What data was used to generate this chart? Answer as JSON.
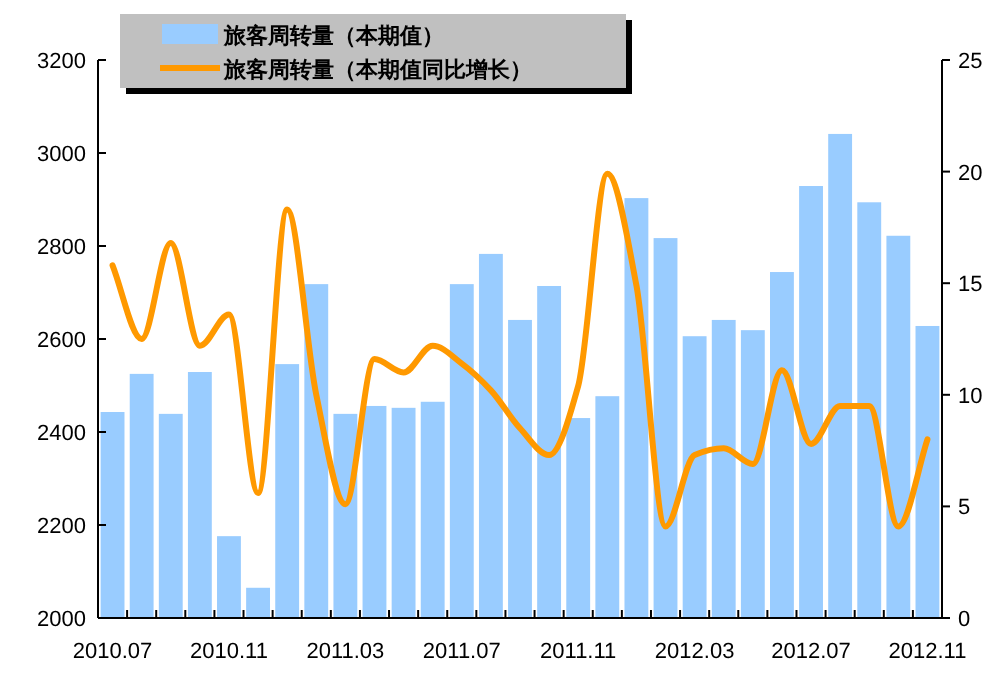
{
  "chart_data": {
    "type": "bar",
    "legend": "top",
    "categories": [
      "2010.07",
      null,
      null,
      null,
      "2010.11",
      null,
      null,
      null,
      "2011.03",
      null,
      null,
      null,
      "2011.07",
      null,
      null,
      null,
      "2011.11",
      null,
      null,
      null,
      "2012.03",
      null,
      null,
      null,
      "2012.07",
      null,
      null,
      null,
      "2012.11"
    ],
    "series": [
      {
        "name": "旅客周转量（本期值）",
        "type": "bar",
        "color": "#99ccff",
        "values": [
          2443,
          2525,
          2439,
          2529,
          2176,
          2065,
          2546,
          2718,
          2439,
          2456,
          2452,
          2465,
          2718,
          2783,
          2641,
          2714,
          2430,
          2477,
          2903,
          2817,
          2606,
          2641,
          2619,
          2744,
          2929,
          3041,
          2894,
          2822,
          2628
        ]
      },
      {
        "name": "旅客周转量（本期值同比增长）",
        "type": "line",
        "axis": "y2",
        "color": "#ff9900",
        "values": [
          15.8,
          12.5,
          16.8,
          12.2,
          13.6,
          5.6,
          18.3,
          10.0,
          5.1,
          11.6,
          11.0,
          12.2,
          11.4,
          10.2,
          8.5,
          7.3,
          10.4,
          19.9,
          14.9,
          4.1,
          7.3,
          7.6,
          6.9,
          11.1,
          7.8,
          9.5,
          9.5,
          4.1,
          8.0
        ]
      }
    ],
    "ylim": [
      2000,
      3200
    ],
    "yticks": [
      2000,
      2200,
      2400,
      2600,
      2800,
      3000,
      3200
    ],
    "y2lim": [
      0,
      25
    ],
    "y2ticks": [
      0,
      5,
      10,
      15,
      20,
      25
    ]
  }
}
